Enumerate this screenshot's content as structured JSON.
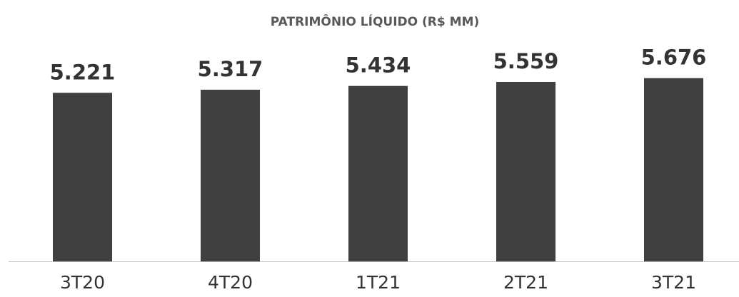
{
  "chart_data": {
    "type": "bar",
    "title": "PATRIMÔNIO LÍQUIDO (R$ MM)",
    "categories": [
      "3T20",
      "4T20",
      "1T21",
      "2T21",
      "3T21"
    ],
    "values": [
      5221,
      5317,
      5434,
      5559,
      5676
    ],
    "value_labels": [
      "5.221",
      "5.317",
      "5.434",
      "5.559",
      "5.676"
    ],
    "color": "#404040",
    "ylim": [
      0,
      6000
    ]
  }
}
